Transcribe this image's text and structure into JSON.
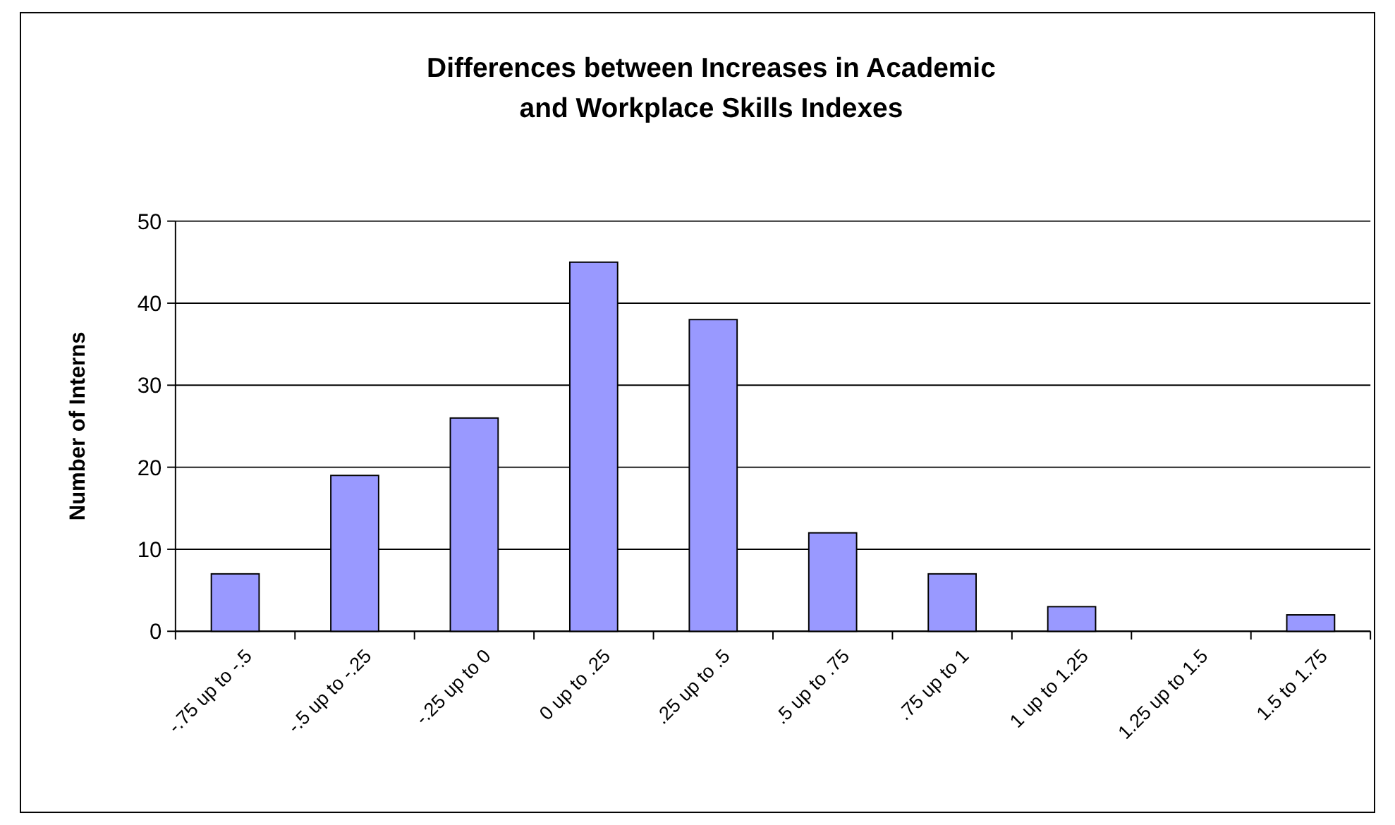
{
  "chart_data": {
    "type": "bar",
    "title": "Differences between Increases in Academic\nand Workplace Skills Indexes",
    "ylabel": "Number of Interns",
    "categories": [
      "-.75 up to -.5",
      "-.5 up to -.25",
      "-.25 up to 0",
      "0 up to .25",
      ".25 up to .5",
      ".5 up to .75",
      ".75 up to 1",
      "1 up to 1.25",
      "1.25 up to 1.5",
      "1.5 to 1.75"
    ],
    "values": [
      7,
      19,
      26,
      45,
      38,
      12,
      7,
      3,
      0,
      2
    ],
    "color": "#9999ff",
    "ylim": [
      0,
      50
    ],
    "yticks": [
      0,
      10,
      20,
      30,
      40,
      50
    ],
    "grid": "y"
  }
}
